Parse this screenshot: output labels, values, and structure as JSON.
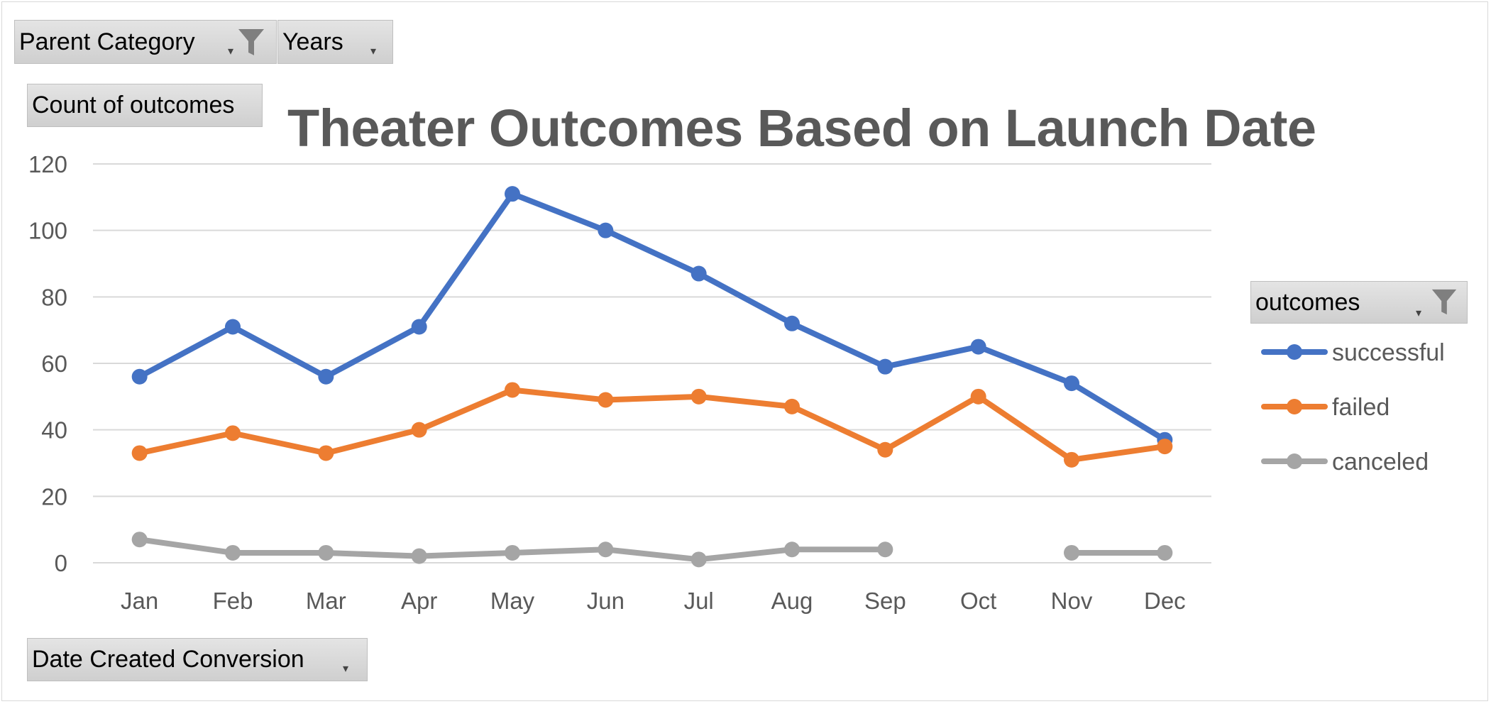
{
  "filters": {
    "parent_category": "Parent Category",
    "years": "Years",
    "values_field": "Count of outcomes",
    "axis_field": "Date Created Conversion",
    "legend_field": "outcomes"
  },
  "colors": {
    "successful": "#4472C4",
    "failed": "#ED7D31",
    "canceled": "#A5A5A5",
    "title": "#595959",
    "gridline": "#d9d9d9",
    "button_bg": "#d9d9d9"
  },
  "icons": [
    "funnel-filter-icon",
    "dropdown-arrow-icon"
  ],
  "chart_data": {
    "type": "line",
    "title": "Theater Outcomes Based on Launch Date",
    "xlabel": "",
    "ylabel": "",
    "categories": [
      "Jan",
      "Feb",
      "Mar",
      "Apr",
      "May",
      "Jun",
      "Jul",
      "Aug",
      "Sep",
      "Oct",
      "Nov",
      "Dec"
    ],
    "ylim": [
      0,
      120
    ],
    "yticks": [
      "0",
      "20",
      "40",
      "60",
      "80",
      "100",
      "120"
    ],
    "grid": true,
    "legend_position": "right",
    "series": [
      {
        "name": "successful",
        "color": "#4472C4",
        "values": [
          56,
          71,
          56,
          71,
          111,
          100,
          87,
          72,
          59,
          65,
          54,
          37
        ]
      },
      {
        "name": "failed",
        "color": "#ED7D31",
        "values": [
          33,
          39,
          33,
          40,
          52,
          49,
          50,
          47,
          34,
          50,
          31,
          35
        ]
      },
      {
        "name": "canceled",
        "color": "#A5A5A5",
        "values": [
          7,
          3,
          3,
          2,
          3,
          4,
          1,
          4,
          4,
          null,
          3,
          3
        ]
      }
    ]
  }
}
